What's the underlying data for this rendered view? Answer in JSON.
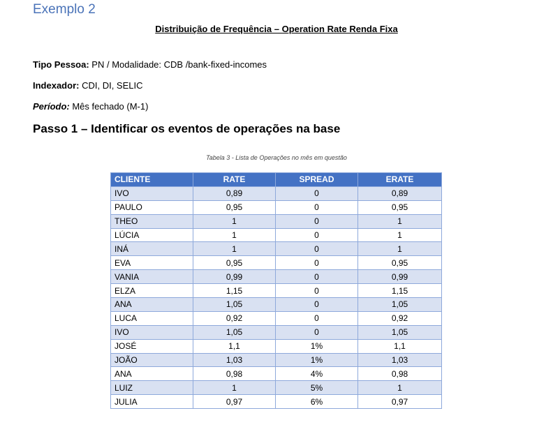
{
  "heading": "Exemplo 2",
  "title": "Distribuição de Frequência – Operation Rate Renda Fixa",
  "meta": {
    "tipo_label": "Tipo Pessoa:",
    "tipo_value": " PN / Modalidade: CDB /bank-fixed-incomes",
    "indexador_label": "Indexador:",
    "indexador_value": " CDI, DI, SELIC",
    "periodo_label": "Período:",
    "periodo_value": " Mês fechado (M-1)"
  },
  "step_heading": "Passo 1 – Identificar os eventos de operações na base",
  "caption": "Tabela 3 - Lista de Operações no mês em questão",
  "table": {
    "headers": [
      "CLIENTE",
      "RATE",
      "SPREAD",
      "ERATE"
    ],
    "rows": [
      [
        "IVO",
        "0,89",
        "0",
        "0,89"
      ],
      [
        "PAULO",
        "0,95",
        "0",
        "0,95"
      ],
      [
        "THEO",
        "1",
        "0",
        "1"
      ],
      [
        "LÚCIA",
        "1",
        "0",
        "1"
      ],
      [
        "INÁ",
        "1",
        "0",
        "1"
      ],
      [
        "EVA",
        "0,95",
        "0",
        "0,95"
      ],
      [
        "VANIA",
        "0,99",
        "0",
        "0,99"
      ],
      [
        "ELZA",
        "1,15",
        "0",
        "1,15"
      ],
      [
        "ANA",
        "1,05",
        "0",
        "1,05"
      ],
      [
        "LUCA",
        "0,92",
        "0",
        "0,92"
      ],
      [
        "IVO",
        "1,05",
        "0",
        "1,05"
      ],
      [
        "JOSÉ",
        "1,1",
        "1%",
        "1,1"
      ],
      [
        "JOÃO",
        "1,03",
        "1%",
        "1,03"
      ],
      [
        "ANA",
        "0,98",
        "4%",
        "0,98"
      ],
      [
        "LUIZ",
        "1",
        "5%",
        "1"
      ],
      [
        "JULIA",
        "0,97",
        "6%",
        "0,97"
      ]
    ]
  }
}
